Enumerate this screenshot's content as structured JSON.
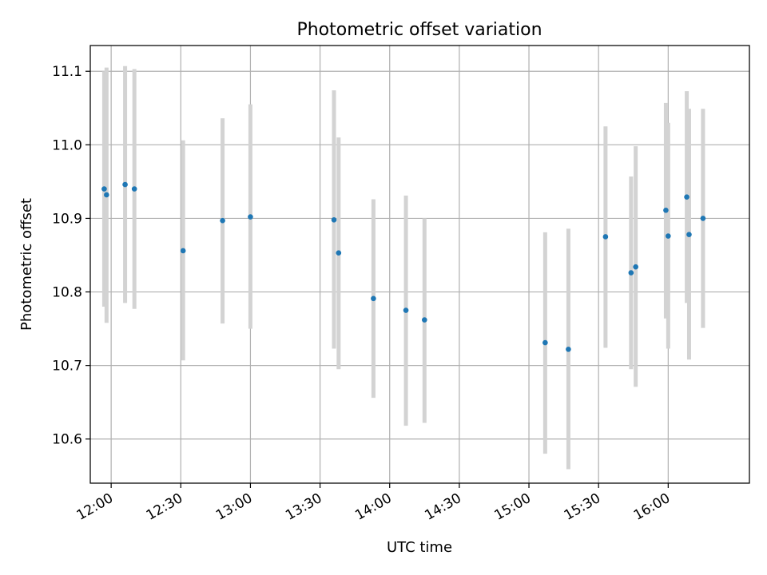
{
  "chart_data": {
    "type": "scatter",
    "title": "Photometric offset variation",
    "xlabel": "UTC time",
    "ylabel": "Photometric offset",
    "xlim": [
      "11:51",
      "16:35"
    ],
    "ylim": [
      10.54,
      11.135
    ],
    "x_ticks": [
      "12:00",
      "12:30",
      "13:00",
      "13:30",
      "14:00",
      "14:30",
      "15:00",
      "15:30",
      "16:00"
    ],
    "y_ticks": [
      10.6,
      10.7,
      10.8,
      10.9,
      11.0,
      11.1
    ],
    "y_tick_labels": [
      "10.6",
      "10.7",
      "10.8",
      "10.9",
      "11.0",
      "11.1"
    ],
    "grid": true,
    "marker_color": "#1f77b4",
    "errorbar_color": "#d3d3d3",
    "points": [
      {
        "x": "11:57",
        "y": 10.94,
        "err_low": 10.78,
        "err_high": 11.1
      },
      {
        "x": "11:58",
        "y": 10.932,
        "err_low": 10.758,
        "err_high": 11.105
      },
      {
        "x": "12:06",
        "y": 10.946,
        "err_low": 10.785,
        "err_high": 11.107
      },
      {
        "x": "12:10",
        "y": 10.94,
        "err_low": 10.777,
        "err_high": 11.103
      },
      {
        "x": "12:31",
        "y": 10.856,
        "err_low": 10.707,
        "err_high": 11.006
      },
      {
        "x": "12:48",
        "y": 10.897,
        "err_low": 10.757,
        "err_high": 11.036
      },
      {
        "x": "13:00",
        "y": 10.902,
        "err_low": 10.75,
        "err_high": 11.055
      },
      {
        "x": "13:36",
        "y": 10.898,
        "err_low": 10.723,
        "err_high": 11.074
      },
      {
        "x": "13:38",
        "y": 10.853,
        "err_low": 10.695,
        "err_high": 11.01
      },
      {
        "x": "13:53",
        "y": 10.791,
        "err_low": 10.656,
        "err_high": 10.926
      },
      {
        "x": "14:07",
        "y": 10.775,
        "err_low": 10.618,
        "err_high": 10.931
      },
      {
        "x": "14:15",
        "y": 10.762,
        "err_low": 10.622,
        "err_high": 10.9
      },
      {
        "x": "15:07",
        "y": 10.731,
        "err_low": 10.58,
        "err_high": 10.881
      },
      {
        "x": "15:17",
        "y": 10.722,
        "err_low": 10.559,
        "err_high": 10.886
      },
      {
        "x": "15:33",
        "y": 10.875,
        "err_low": 10.724,
        "err_high": 11.025
      },
      {
        "x": "15:44",
        "y": 10.826,
        "err_low": 10.695,
        "err_high": 10.957
      },
      {
        "x": "15:46",
        "y": 10.834,
        "err_low": 10.671,
        "err_high": 10.998
      },
      {
        "x": "15:59",
        "y": 10.911,
        "err_low": 10.764,
        "err_high": 11.057
      },
      {
        "x": "16:00",
        "y": 10.876,
        "err_low": 10.723,
        "err_high": 11.03
      },
      {
        "x": "16:08",
        "y": 10.929,
        "err_low": 10.785,
        "err_high": 11.073
      },
      {
        "x": "16:09",
        "y": 10.878,
        "err_low": 10.708,
        "err_high": 11.049
      },
      {
        "x": "16:15",
        "y": 10.9,
        "err_low": 10.751,
        "err_high": 11.049
      }
    ]
  }
}
